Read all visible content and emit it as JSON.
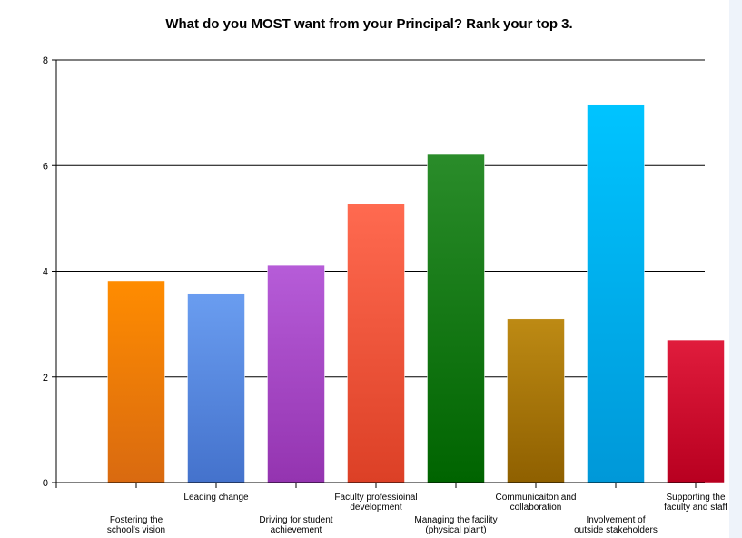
{
  "chart_data": {
    "type": "bar",
    "title": "What do you MOST want from your Principal? Rank your top 3.",
    "xlabel": "",
    "ylabel": "",
    "ylim": [
      0,
      8
    ],
    "yticks": [
      0,
      2,
      4,
      6,
      8
    ],
    "grid": true,
    "categories": [
      [
        "Fostering the",
        "school's vision"
      ],
      [
        "Leading change"
      ],
      [
        "Driving for student",
        "achievement"
      ],
      [
        "Faculty professioinal",
        "development"
      ],
      [
        "Managing the facility",
        "(physical plant)"
      ],
      [
        "Communicaiton and",
        "collaboration"
      ],
      [
        "Involvement of",
        "outside stakeholders"
      ],
      [
        "Supporting the",
        "faculty and staff"
      ]
    ],
    "values": [
      3.82,
      3.58,
      4.11,
      5.28,
      6.21,
      3.1,
      7.16,
      2.7
    ],
    "colors": [
      [
        "#ff8c00",
        "#d96a10"
      ],
      [
        "#6a9df0",
        "#4472cc"
      ],
      [
        "#b65cd8",
        "#9434b0"
      ],
      [
        "#ff6a50",
        "#dc4026"
      ],
      [
        "#2a8c2a",
        "#006400"
      ],
      [
        "#bd8a14",
        "#8f6000"
      ],
      [
        "#00c4ff",
        "#0098d8"
      ],
      [
        "#e01c3c",
        "#b80020"
      ]
    ]
  }
}
